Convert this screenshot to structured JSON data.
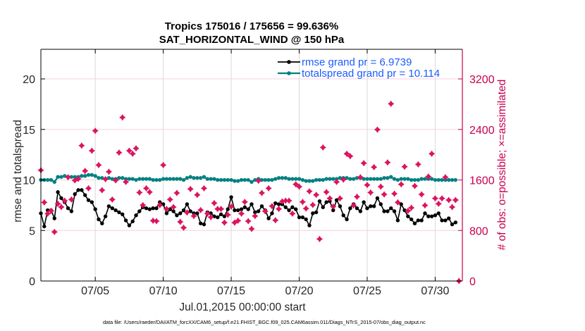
{
  "chart_data": {
    "type": "line",
    "title": [
      "Tropics 175016 / 175656 = 99.636%",
      "SAT_HORIZONTAL_WIND @ 150 hPa"
    ],
    "xlabel": "Jul.01,2015 00:00:00 start",
    "ylabel": "rmse and totalspread",
    "ylabel_right": "# of obs: o=possible; ×=assimilated",
    "footnote": "data file: /Users/raeder/DAI/ATM_forcXX/CAM6_setup/f.e21.FHIST_BGC.f09_025.CAM6assim.011/Diags_NTrS_2015-07/obs_diag_output.nc",
    "grid": true,
    "colors": {
      "rmse": "#000000",
      "totalspread": "#008080",
      "obs": "#dc1460",
      "right_axis": "#c8004f",
      "legend_text": "#1a5cff"
    },
    "x_axis": {
      "start": "Jul.01,2015 00:00:00",
      "step_hours": 6,
      "xlim_days": [
        0,
        31
      ],
      "ticks_days": [
        4,
        9,
        14,
        19,
        24,
        29
      ],
      "tick_labels": [
        "07/05",
        "07/10",
        "07/15",
        "07/20",
        "07/25",
        "07/30"
      ]
    },
    "y_axis_left": {
      "ylim": [
        0,
        22.93
      ],
      "ticks": [
        0,
        5,
        10,
        15,
        20
      ],
      "tick_labels": [
        "0",
        "5",
        "10",
        "15",
        "20"
      ]
    },
    "y_axis_right": {
      "ylim": [
        0,
        3669
      ],
      "ticks": [
        0,
        800,
        1600,
        2400,
        3200
      ],
      "tick_labels": [
        "0",
        "800",
        "1600",
        "2400",
        "3200"
      ]
    },
    "legend": {
      "position": "top-right",
      "entries": [
        "rmse grand pr = 6.9739",
        "totalspread grand pr = 10.114"
      ]
    },
    "series": [
      {
        "name": "rmse",
        "axis": "left",
        "values": [
          6.7,
          5.4,
          7.0,
          7.0,
          6.2,
          8.8,
          8.2,
          7.8,
          7.2,
          6.9,
          8.6,
          9.0,
          9.0,
          8.5,
          8.0,
          7.8,
          7.1,
          6.1,
          5.7,
          6.4,
          7.4,
          7.2,
          7.0,
          6.8,
          6.6,
          6.0,
          5.5,
          5.9,
          6.5,
          6.9,
          7.3,
          7.2,
          7.1,
          7.2,
          7.2,
          7.8,
          7.6,
          6.7,
          7.1,
          6.9,
          6.5,
          6.7,
          7.0,
          7.6,
          6.9,
          6.7,
          6.7,
          5.7,
          5.6,
          6.8,
          6.7,
          6.4,
          6.3,
          6.6,
          6.4,
          7.1,
          8.3,
          7.0,
          7.0,
          7.1,
          7.3,
          7.1,
          7.6,
          6.8,
          6.9,
          7.4,
          7.0,
          6.2,
          6.7,
          7.7,
          7.6,
          7.6,
          7.3,
          7.0,
          7.3,
          7.1,
          6.3,
          6.3,
          6.1,
          5.5,
          6.7,
          6.8,
          7.9,
          7.3,
          7.8,
          7.9,
          7.0,
          8.0,
          7.4,
          6.5,
          6.1,
          7.2,
          7.6,
          7.2,
          6.9,
          7.8,
          7.2,
          7.4,
          7.4,
          8.2,
          7.6,
          6.9,
          6.9,
          7.2,
          6.9,
          6.0,
          7.6,
          7.0,
          6.4,
          6.1,
          5.7,
          6.0,
          6.0,
          6.7,
          6.4,
          6.4,
          6.5,
          6.7,
          6.0,
          6.0,
          6.2,
          5.6,
          5.8,
          null
        ]
      },
      {
        "name": "totalspread",
        "axis": "left",
        "values": [
          10.0,
          10.0,
          10.0,
          10.0,
          9.8,
          10.3,
          10.3,
          10.4,
          10.3,
          10.3,
          10.3,
          10.3,
          10.4,
          10.4,
          10.5,
          10.5,
          10.4,
          10.2,
          10.2,
          10.1,
          10.2,
          10.1,
          10.1,
          10.2,
          10.2,
          10.1,
          10.1,
          10.1,
          10.0,
          10.1,
          10.1,
          10.1,
          10.1,
          10.0,
          10.0,
          10.0,
          10.1,
          10.1,
          10.1,
          10.1,
          10.1,
          10.1,
          10.0,
          10.2,
          10.3,
          10.2,
          10.2,
          10.2,
          10.3,
          10.1,
          10.1,
          10.1,
          10.0,
          10.0,
          10.0,
          10.0,
          10.0,
          9.9,
          9.9,
          10.0,
          10.0,
          10.0,
          9.8,
          10.0,
          10.1,
          10.0,
          10.0,
          10.0,
          10.0,
          10.1,
          10.2,
          10.2,
          10.2,
          10.1,
          10.1,
          10.1,
          10.1,
          10.0,
          9.9,
          9.9,
          9.9,
          10.0,
          10.0,
          10.0,
          10.1,
          10.1,
          10.1,
          10.1,
          10.2,
          10.2,
          10.2,
          10.1,
          10.1,
          10.2,
          10.2,
          10.1,
          10.1,
          10.1,
          10.1,
          10.1,
          10.1,
          10.2,
          10.2,
          10.3,
          10.1,
          10.0,
          10.1,
          10.1,
          10.1,
          10.0,
          10.0,
          10.0,
          10.1,
          10.1,
          10.1,
          10.1,
          10.0,
          10.0,
          10.0,
          10.0,
          10.0,
          10.0,
          10.0,
          null
        ]
      },
      {
        "name": "# of obs (possible / assimilated, overlapping)",
        "axis": "right",
        "values": [
          1754,
          1245,
          1067,
          1111,
          777,
          1223,
          1171,
          1271,
          1643,
          1290,
          1594,
          1617,
          2144,
          1743,
          1468,
          2063,
          2378,
          1836,
          1438,
          1613,
          1730,
          1290,
          1594,
          2033,
          2590,
          1569,
          2063,
          2015,
          2100,
          1401,
          1201,
          1468,
          1408,
          955,
          948,
          1201,
          1836,
          1141,
          1290,
          1171,
          1394,
          937,
          844,
          1085,
          1457,
          1029,
          1364,
          1123,
          1468,
          1067,
          1011,
          1234,
          1141,
          1141,
          925,
          1048,
          1178,
          925,
          955,
          1067,
          1252,
          948,
          825,
          1029,
          1587,
          1394,
          1104,
          1468,
          1185,
          962,
          1141,
          1260,
          1271,
          1271,
          1067,
          1531,
          1494,
          1252,
          1148,
          1420,
          1205,
          1364,
          665,
          2115,
          1408,
          1308,
          1178,
          1569,
          1308,
          1606,
          2015,
          1977,
          1197,
          1334,
          1643,
          1866,
          1520,
          1401,
          1803,
          2397,
          1494,
          1371,
          1877,
          2806,
          1383,
          1245,
          1531,
          1810,
          1111,
          1160,
          1505,
          1847,
          1371,
          1197,
          1654,
          2015,
          1308,
          1223,
          1308,
          1643,
          1282,
          1171,
          1282,
          0
        ]
      }
    ]
  }
}
